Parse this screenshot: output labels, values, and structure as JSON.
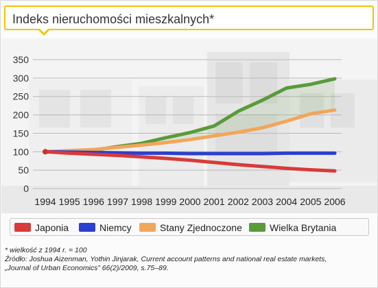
{
  "title": "Indeks nieruchomości mieszkalnych*",
  "chart_data": {
    "type": "line",
    "title": "Indeks nieruchomości mieszkalnych*",
    "xlabel": "",
    "ylabel": "",
    "x": [
      "1994",
      "1995",
      "1996",
      "1997",
      "1998",
      "1999",
      "2000",
      "2001",
      "2002",
      "2003",
      "2004",
      "2005",
      "2006"
    ],
    "ylim": [
      0,
      350
    ],
    "yticks": [
      0,
      50,
      100,
      150,
      200,
      250,
      300,
      350
    ],
    "grid": true,
    "legend_position": "bottom",
    "series": [
      {
        "name": "Japonia",
        "color": "#d93a3a",
        "values": [
          100,
          96,
          93,
          90,
          86,
          82,
          77,
          71,
          65,
          60,
          55,
          51,
          48
        ]
      },
      {
        "name": "Niemcy",
        "color": "#2b3fd1",
        "values": [
          100,
          99,
          98,
          97,
          96,
          96,
          95,
          95,
          95,
          95,
          96,
          96,
          96
        ]
      },
      {
        "name": "Stany Zjednoczone",
        "color": "#f2a65a",
        "values": [
          100,
          103,
          106,
          112,
          118,
          125,
          133,
          143,
          153,
          165,
          183,
          203,
          213
        ]
      },
      {
        "name": "Wielka Brytania",
        "color": "#5a9a3a",
        "values": [
          100,
          101,
          104,
          114,
          123,
          138,
          152,
          170,
          210,
          240,
          273,
          283,
          298
        ]
      }
    ]
  },
  "footnotes": {
    "line1": "* wielkość z 1994 r. = 100",
    "line2": "Źródło: Joshua Aizenman, Yothin Jinjarak, Current account patterns and national real estate markets,",
    "line3": "„Journal of Urban Economics” 66(2)/2009, s.75–89."
  }
}
